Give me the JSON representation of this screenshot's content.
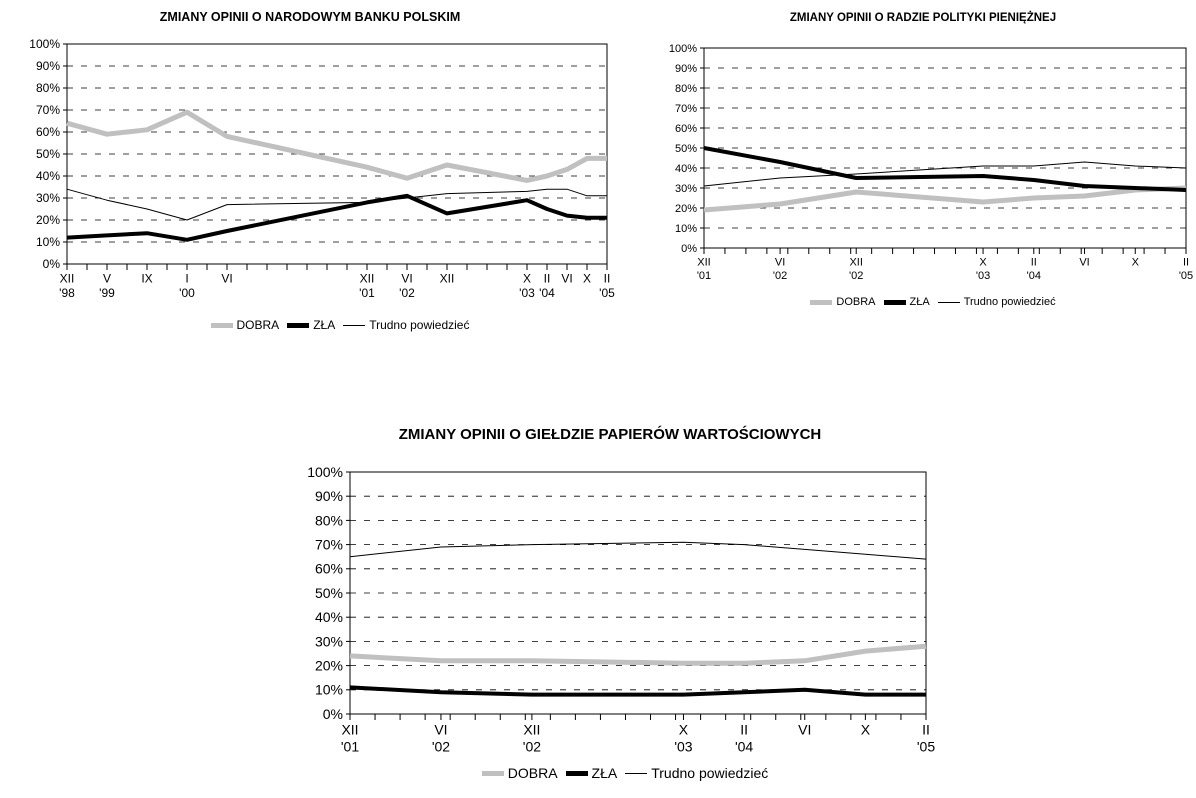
{
  "chart_data": [
    {
      "type": "line",
      "title": "ZMIANY OPINII O NARODOWYM BANKU POLSKIM",
      "ylim": [
        0,
        100
      ],
      "y_ticks": [
        "0%",
        "10%",
        "20%",
        "30%",
        "40%",
        "50%",
        "60%",
        "70%",
        "80%",
        "90%",
        "100%"
      ],
      "grid": true,
      "legend": "bottom",
      "n_points": 28,
      "tick_labels": [
        {
          "i": 0,
          "l1": "XII",
          "l2": "'98"
        },
        {
          "i": 2,
          "l1": "V",
          "l2": "'99"
        },
        {
          "i": 4,
          "l1": "IX",
          "l2": ""
        },
        {
          "i": 6,
          "l1": "I",
          "l2": "'00"
        },
        {
          "i": 8,
          "l1": "VI",
          "l2": ""
        },
        {
          "i": 15,
          "l1": "XII",
          "l2": "'01"
        },
        {
          "i": 17,
          "l1": "VI",
          "l2": "'02"
        },
        {
          "i": 19,
          "l1": "XII",
          "l2": ""
        },
        {
          "i": 23,
          "l1": "X",
          "l2": "'03"
        },
        {
          "i": 24,
          "l1": "II",
          "l2": "'04"
        },
        {
          "i": 25,
          "l1": "VI",
          "l2": ""
        },
        {
          "i": 26,
          "l1": "X",
          "l2": ""
        },
        {
          "i": 27,
          "l1": "II",
          "l2": "'05"
        }
      ],
      "series": [
        {
          "name": "DOBRA",
          "color": "#c0c0c0",
          "width": 5,
          "points": [
            [
              0,
              64
            ],
            [
              2,
              59
            ],
            [
              4,
              61
            ],
            [
              6,
              69
            ],
            [
              8,
              58
            ],
            [
              15,
              44
            ],
            [
              17,
              39
            ],
            [
              19,
              45
            ],
            [
              23,
              38
            ],
            [
              24,
              40
            ],
            [
              25,
              43
            ],
            [
              26,
              48
            ],
            [
              27,
              48
            ]
          ]
        },
        {
          "name": "ZŁA",
          "color": "#000000",
          "width": 4,
          "points": [
            [
              0,
              12
            ],
            [
              2,
              13
            ],
            [
              4,
              14
            ],
            [
              6,
              11
            ],
            [
              8,
              15
            ],
            [
              15,
              28
            ],
            [
              17,
              31
            ],
            [
              19,
              23
            ],
            [
              23,
              29
            ],
            [
              24,
              25
            ],
            [
              25,
              22
            ],
            [
              26,
              21
            ],
            [
              27,
              21
            ]
          ]
        },
        {
          "name": "Trudno powiedzieć",
          "color": "#000000",
          "width": 1,
          "points": [
            [
              0,
              34
            ],
            [
              2,
              29
            ],
            [
              4,
              25
            ],
            [
              6,
              20
            ],
            [
              8,
              27
            ],
            [
              15,
              28
            ],
            [
              17,
              30
            ],
            [
              19,
              32
            ],
            [
              23,
              33
            ],
            [
              24,
              34
            ],
            [
              25,
              34
            ],
            [
              26,
              31
            ],
            [
              27,
              31
            ]
          ]
        }
      ]
    },
    {
      "type": "line",
      "title": "ZMIANY OPINII O RADZIE POLITYKI PIENIĘŻNEJ",
      "ylim": [
        0,
        100
      ],
      "y_ticks": [
        "0%",
        "10%",
        "20%",
        "30%",
        "40%",
        "50%",
        "60%",
        "70%",
        "80%",
        "90%",
        "100%"
      ],
      "grid": true,
      "legend": "bottom",
      "n_points": 24,
      "tick_labels": [
        {
          "i": 0,
          "l1": "XII",
          "l2": "'01"
        },
        {
          "i": 6,
          "l1": "VI",
          "l2": "'02"
        },
        {
          "i": 12,
          "l1": "XII",
          "l2": "'02"
        },
        {
          "i": 22,
          "l1": "X",
          "l2": "'03"
        },
        {
          "i": 26,
          "l1": "II",
          "l2": "'04"
        },
        {
          "i": 30,
          "l1": "VI",
          "l2": ""
        },
        {
          "i": 34,
          "l1": "X",
          "l2": ""
        },
        {
          "i": 38,
          "l1": "II",
          "l2": "'05"
        }
      ],
      "series": [
        {
          "name": "DOBRA",
          "color": "#c0c0c0",
          "width": 5,
          "points": [
            [
              0,
              19
            ],
            [
              6,
              22
            ],
            [
              12,
              28
            ],
            [
              22,
              23
            ],
            [
              26,
              25
            ],
            [
              30,
              26
            ],
            [
              34,
              29
            ],
            [
              38,
              30
            ]
          ]
        },
        {
          "name": "ZŁA",
          "color": "#000000",
          "width": 4,
          "points": [
            [
              0,
              50
            ],
            [
              6,
              43
            ],
            [
              12,
              35
            ],
            [
              22,
              36
            ],
            [
              26,
              34
            ],
            [
              30,
              31
            ],
            [
              34,
              30
            ],
            [
              38,
              29
            ]
          ]
        },
        {
          "name": "Trudno powiedzieć",
          "color": "#000000",
          "width": 1,
          "points": [
            [
              0,
              31
            ],
            [
              6,
              35
            ],
            [
              12,
              37
            ],
            [
              22,
              41
            ],
            [
              26,
              41
            ],
            [
              30,
              43
            ],
            [
              34,
              41
            ],
            [
              38,
              40
            ]
          ]
        }
      ]
    },
    {
      "type": "line",
      "title": "ZMIANY OPINII O GIEŁDZIE PAPIERÓW WARTOŚCIOWYCH",
      "ylim": [
        0,
        100
      ],
      "y_ticks": [
        "0%",
        "10%",
        "20%",
        "30%",
        "40%",
        "50%",
        "60%",
        "70%",
        "80%",
        "90%",
        "100%"
      ],
      "grid": true,
      "legend": "bottom",
      "n_points": 24,
      "tick_labels": [
        {
          "i": 0,
          "l1": "XII",
          "l2": "'01"
        },
        {
          "i": 6,
          "l1": "VI",
          "l2": "'02"
        },
        {
          "i": 12,
          "l1": "XII",
          "l2": "'02"
        },
        {
          "i": 22,
          "l1": "X",
          "l2": "'03"
        },
        {
          "i": 26,
          "l1": "II",
          "l2": "'04"
        },
        {
          "i": 30,
          "l1": "VI",
          "l2": ""
        },
        {
          "i": 34,
          "l1": "X",
          "l2": ""
        },
        {
          "i": 38,
          "l1": "II",
          "l2": "'05"
        }
      ],
      "series": [
        {
          "name": "DOBRA",
          "color": "#c0c0c0",
          "width": 5,
          "points": [
            [
              0,
              24
            ],
            [
              6,
              22
            ],
            [
              12,
              22
            ],
            [
              22,
              21
            ],
            [
              26,
              21
            ],
            [
              30,
              22
            ],
            [
              34,
              26
            ],
            [
              38,
              28
            ]
          ]
        },
        {
          "name": "ZŁA",
          "color": "#000000",
          "width": 4,
          "points": [
            [
              0,
              11
            ],
            [
              6,
              9
            ],
            [
              12,
              8
            ],
            [
              22,
              8
            ],
            [
              26,
              9
            ],
            [
              30,
              10
            ],
            [
              34,
              8
            ],
            [
              38,
              8
            ]
          ]
        },
        {
          "name": "Trudno powiedzieć",
          "color": "#000000",
          "width": 1,
          "points": [
            [
              0,
              65
            ],
            [
              6,
              69
            ],
            [
              12,
              70
            ],
            [
              22,
              71
            ],
            [
              26,
              70
            ],
            [
              30,
              68
            ],
            [
              34,
              66
            ],
            [
              38,
              64
            ]
          ]
        }
      ]
    }
  ]
}
